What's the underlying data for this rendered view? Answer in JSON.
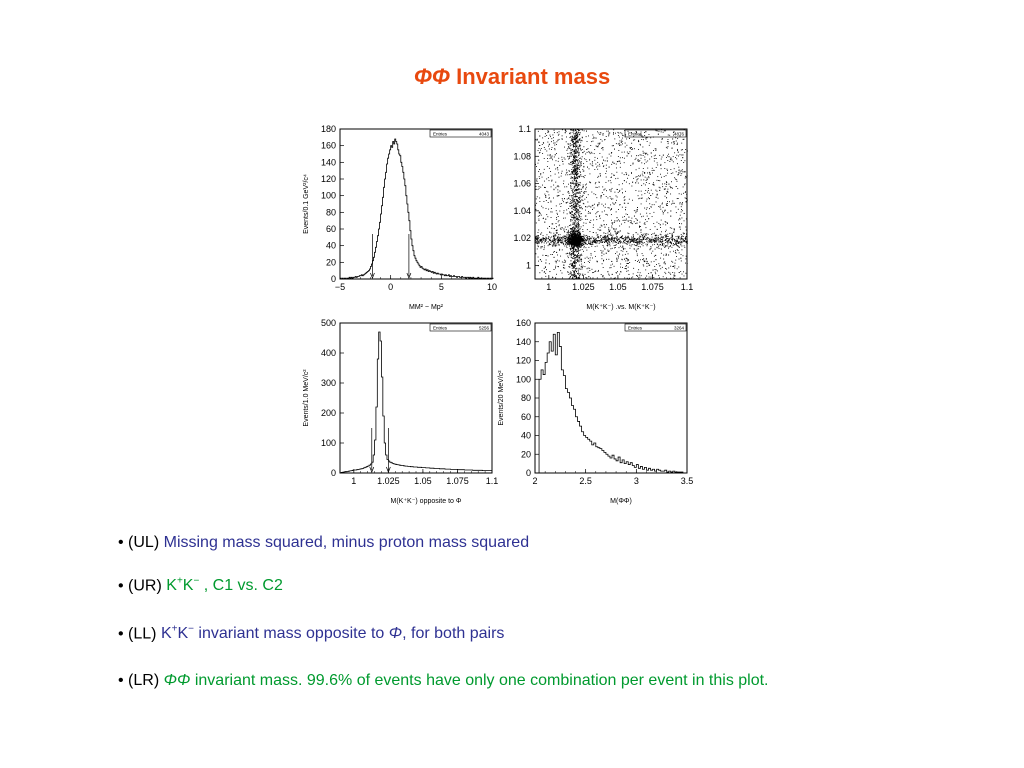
{
  "title": {
    "phi": "ΦΦ",
    "text": " Invariant mass"
  },
  "chart_data": [
    {
      "id": "UL",
      "type": "histogram",
      "ylabel": "Events/0.1 GeV²/c⁴",
      "xlabel": "MM² − Mp²",
      "stats_label": "Entries",
      "stats_value": "4043",
      "xlim": [
        -5,
        10
      ],
      "ylim": [
        0,
        180
      ],
      "xticks": [
        -5,
        0,
        5,
        10
      ],
      "xtick_labels": [
        "−5",
        "0",
        "5",
        "10"
      ],
      "yticks": [
        0,
        20,
        40,
        60,
        80,
        100,
        120,
        140,
        160,
        180
      ],
      "xstart": -5,
      "binwidth": 0.1,
      "arrows": [
        -1.8,
        1.8
      ],
      "values": [
        1,
        0,
        1,
        0,
        1,
        1,
        0,
        1,
        1,
        2,
        1,
        2,
        1,
        2,
        2,
        3,
        2,
        3,
        3,
        4,
        4,
        5,
        4,
        5,
        6,
        7,
        8,
        9,
        10,
        12,
        15,
        18,
        22,
        26,
        32,
        38,
        45,
        52,
        60,
        68,
        78,
        88,
        98,
        110,
        120,
        128,
        138,
        145,
        150,
        155,
        160,
        158,
        165,
        162,
        168,
        165,
        162,
        155,
        150,
        148,
        140,
        135,
        128,
        120,
        112,
        100,
        90,
        80,
        70,
        58,
        48,
        40,
        34,
        28,
        25,
        22,
        20,
        18,
        16,
        14,
        15,
        13,
        12,
        11,
        12,
        10,
        11,
        9,
        10,
        9,
        8,
        9,
        7,
        8,
        7,
        6,
        7,
        6,
        6,
        5,
        6,
        5,
        5,
        4,
        5,
        4,
        4,
        5,
        3,
        4,
        3,
        3,
        4,
        3,
        3,
        2,
        3,
        3,
        2,
        2,
        3,
        2,
        2,
        2,
        1,
        2,
        2,
        1,
        2,
        1,
        1,
        2,
        1,
        1,
        1,
        1,
        2,
        1,
        1,
        1,
        0,
        1,
        1,
        1,
        0,
        1,
        1,
        0,
        1,
        0,
        1
      ]
    },
    {
      "id": "UR",
      "type": "scatter",
      "xlabel": "M(K⁺K⁻) .vs. M(K⁺K⁻)",
      "stats_label": "Entries",
      "stats_value": "4876",
      "xlim": [
        0.99,
        1.1
      ],
      "ylim": [
        0.99,
        1.1
      ],
      "xticks": [
        1,
        1.025,
        1.05,
        1.075,
        1.1
      ],
      "xtick_labels": [
        "1",
        "1.025",
        "1.05",
        "1.075",
        "1.1"
      ],
      "yticks": [
        1,
        1.02,
        1.04,
        1.06,
        1.08,
        1.1
      ],
      "ytick_labels": [
        "1",
        "1.02",
        "1.04",
        "1.06",
        "1.08",
        "1.1"
      ],
      "n_points": 4876,
      "peak": [
        1.019,
        1.019
      ]
    },
    {
      "id": "LL",
      "type": "histogram",
      "ylabel": "Events/1.0 MeV/c²",
      "xlabel": "M(K⁺K⁻) opposite to Φ",
      "stats_label": "Entries",
      "stats_value": "5256",
      "xlim": [
        0.99,
        1.1
      ],
      "ylim": [
        0,
        500
      ],
      "xticks": [
        1,
        1.025,
        1.05,
        1.075,
        1.1
      ],
      "xtick_labels": [
        "1",
        "1.025",
        "1.05",
        "1.075",
        "1.1"
      ],
      "yticks": [
        0,
        100,
        200,
        300,
        400,
        500
      ],
      "xstart": 0.99,
      "binwidth": 0.001,
      "arrows": [
        1.013,
        1.025
      ],
      "values": [
        1,
        2,
        3,
        4,
        5,
        5,
        6,
        7,
        8,
        9,
        10,
        10,
        11,
        12,
        13,
        14,
        15,
        17,
        19,
        21,
        23,
        26,
        30,
        36,
        60,
        110,
        220,
        380,
        470,
        440,
        320,
        190,
        100,
        60,
        45,
        40,
        36,
        34,
        32,
        30,
        29,
        28,
        27,
        26,
        25,
        25,
        24,
        23,
        23,
        22,
        22,
        21,
        21,
        20,
        20,
        20,
        19,
        19,
        19,
        18,
        18,
        18,
        17,
        17,
        17,
        16,
        16,
        16,
        15,
        15,
        15,
        15,
        14,
        14,
        14,
        14,
        13,
        13,
        13,
        13,
        12,
        12,
        12,
        12,
        12,
        11,
        11,
        11,
        11,
        11,
        10,
        10,
        10,
        10,
        10,
        10,
        9,
        9,
        9,
        9,
        9,
        9,
        9,
        8,
        8,
        8,
        8,
        8,
        8,
        8
      ]
    },
    {
      "id": "LR",
      "type": "histogram",
      "ylabel": "Events/20 MeV/c²",
      "xlabel": "M(ΦΦ)",
      "stats_label": "Entries",
      "stats_value": "3264",
      "xlim": [
        2.0,
        3.5
      ],
      "ylim": [
        0,
        160
      ],
      "xticks": [
        2,
        2.5,
        3,
        3.5
      ],
      "xtick_labels": [
        "2",
        "2.5",
        "3",
        "3.5"
      ],
      "yticks": [
        0,
        20,
        40,
        60,
        80,
        100,
        120,
        140,
        160
      ],
      "xstart": 2.04,
      "binwidth": 0.02,
      "values": [
        100,
        110,
        105,
        118,
        128,
        140,
        130,
        148,
        126,
        150,
        135,
        110,
        104,
        90,
        86,
        80,
        72,
        68,
        60,
        55,
        50,
        44,
        40,
        38,
        36,
        34,
        30,
        32,
        28,
        27,
        26,
        24,
        22,
        20,
        18,
        16,
        19,
        15,
        13,
        17,
        11,
        14,
        10,
        12,
        9,
        11,
        8,
        6,
        9,
        5,
        7,
        4,
        6,
        3,
        5,
        3,
        4,
        2,
        4,
        3,
        2,
        2,
        3,
        1,
        2,
        1,
        2,
        1,
        1,
        1,
        1
      ]
    }
  ],
  "bullets": [
    {
      "prefix": "• (UL) ",
      "text": "Missing mass squared, minus proton mass squared"
    },
    {
      "prefix": "• (UR) ",
      "k": "K",
      "kp": "+",
      "k2": "K",
      "km": "−",
      "rest": " , C1 vs. C2"
    },
    {
      "prefix": "• (LL) ",
      "k": "K",
      "kp": "+",
      "k2": "K",
      "km": "−",
      "text": " invariant mass opposite to ",
      "phi": "Φ",
      "rest": ", for both pairs"
    },
    {
      "prefix": "• (LR) ",
      "phi": "ΦΦ",
      "text": " invariant mass.  99.6% of events have only one combination per event in this plot."
    }
  ]
}
